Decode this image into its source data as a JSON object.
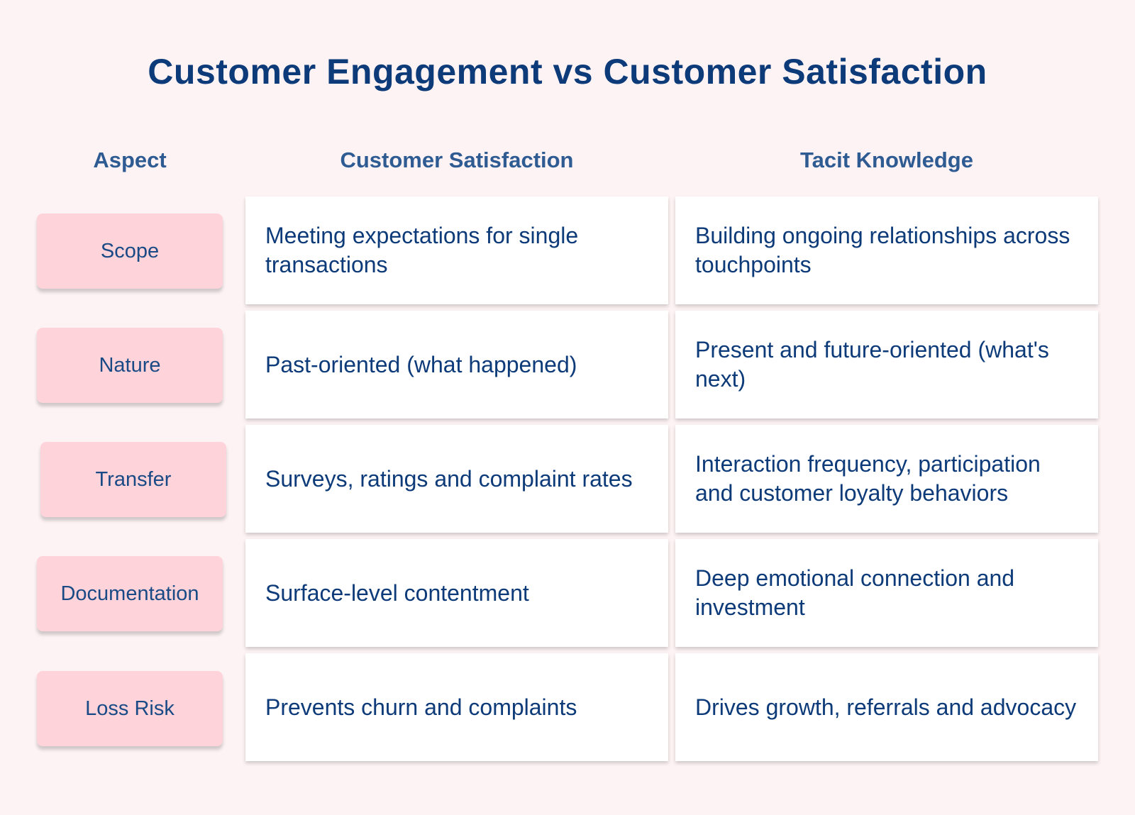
{
  "title": "Customer Engagement vs Customer Satisfaction",
  "headers": {
    "aspect": "Aspect",
    "satisfaction": "Customer Satisfaction",
    "tacit": "Tacit Knowledge"
  },
  "rows": [
    {
      "aspect": "Scope",
      "satisfaction": "Meeting expectations for single transactions",
      "tacit": "Building ongoing relationships across touchpoints"
    },
    {
      "aspect": "Nature",
      "satisfaction": "Past-oriented (what happened)",
      "tacit": "Present and future-oriented (what's next)"
    },
    {
      "aspect": "Transfer",
      "satisfaction": "Surveys, ratings and complaint rates",
      "tacit": "Interaction frequency, participation and customer loyalty behaviors"
    },
    {
      "aspect": "Documentation",
      "satisfaction": "Surface-level contentment",
      "tacit": "Deep emotional connection and investment"
    },
    {
      "aspect": "Loss Risk",
      "satisfaction": "Prevents churn and complaints",
      "tacit": "Drives growth, referrals and advocacy"
    }
  ],
  "colors": {
    "background": "#fdf3f4",
    "title": "#0d3a78",
    "header": "#2f5b93",
    "aspect_fill": "#fed4da",
    "cell_fill": "#ffffff"
  }
}
